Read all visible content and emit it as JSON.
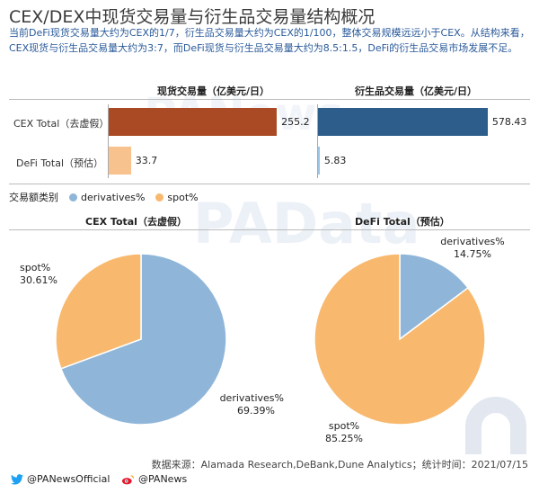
{
  "title": "CEX/DEX中现货交易量与衍生品交易量结构概况",
  "description": "当前DeFi现货交易量大约为CEX的1/7，衍生品交易量大约为CEX的1/100，整体交易规模远远小于CEX。从结构来看，CEX现货与衍生品交易量大约为3:7，而DeFi现货与衍生品交易量大约为8.5:1.5，DeFi的衍生品交易市场发展不足。",
  "watermarks": {
    "top": "PANews",
    "middle": "PAData"
  },
  "legend": {
    "title": "交易额类别",
    "derivatives": "derivatives%",
    "spot": "spot%"
  },
  "source": "数据来源：Alamada Research,DeBank,Dune Analytics；统计时间：2021/07/15",
  "social": {
    "twitter": "@PANewsOfficial",
    "weibo": "@PANews"
  },
  "colors": {
    "spot_bar": "#a94a24",
    "spot_bar_defi": "#f8c28e",
    "deriv_bar": "#2d5d8a",
    "deriv_bar_defi": "#9ec4e3",
    "pie_deriv": "#8fb6d9",
    "pie_spot": "#f8b96e"
  },
  "chart_data": [
    {
      "type": "bar",
      "orientation": "horizontal",
      "title": "现货交易量（亿美元/日）",
      "categories": [
        "CEX Total（去虚假）",
        "DeFi Total（预估）"
      ],
      "values": [
        255.2,
        33.7
      ],
      "value_labels": [
        "255.2",
        "33.7"
      ],
      "xlim": [
        0,
        300
      ]
    },
    {
      "type": "bar",
      "orientation": "horizontal",
      "title": "衍生品交易量（亿美元/日）",
      "categories": [
        "CEX Total（去虚假）",
        "DeFi Total（预估）"
      ],
      "values": [
        578.43,
        5.83
      ],
      "value_labels": [
        "578.43",
        "5.83"
      ],
      "xlim": [
        0,
        680
      ]
    },
    {
      "type": "pie",
      "title": "CEX Total（去虚假）",
      "labels": [
        "derivatives%",
        "spot%"
      ],
      "values": [
        69.39,
        30.61
      ],
      "value_labels": [
        "69.39%",
        "30.61%"
      ]
    },
    {
      "type": "pie",
      "title": "DeFi Total（预估）",
      "labels": [
        "derivatives%",
        "spot%"
      ],
      "values": [
        14.75,
        85.25
      ],
      "value_labels": [
        "14.75%",
        "85.25%"
      ]
    }
  ]
}
